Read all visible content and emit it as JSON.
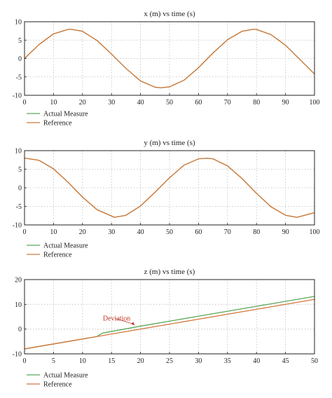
{
  "colors": {
    "actual": "#5aa85a",
    "reference": "#d4763a",
    "grid": "#bdbdbd",
    "axis": "#222222",
    "annotation": "#c0392b"
  },
  "chart_data": [
    {
      "type": "line",
      "title": "x (m) vs time (s)",
      "xlim": [
        0,
        100
      ],
      "ylim": [
        -10,
        10
      ],
      "xticks": [
        0,
        10,
        20,
        30,
        40,
        50,
        60,
        70,
        80,
        90,
        100
      ],
      "yticks": [
        10,
        5,
        0,
        -5,
        -10
      ],
      "grid": true,
      "legend": [
        "Actual Measure",
        "Reference"
      ],
      "legend_position": "below",
      "series": [
        {
          "name": "Actual Measure",
          "x": [
            0,
            5,
            10,
            15,
            16,
            20,
            25,
            30,
            35,
            40,
            45,
            47,
            50,
            55,
            60,
            65,
            70,
            75,
            79,
            80,
            85,
            90,
            95,
            100
          ],
          "y": [
            0,
            3.8,
            6.7,
            7.9,
            7.95,
            7.4,
            4.9,
            1.2,
            -2.7,
            -6.1,
            -7.8,
            -7.95,
            -7.7,
            -5.9,
            -2.5,
            1.5,
            5.1,
            7.4,
            7.95,
            7.9,
            6.5,
            3.6,
            -0.3,
            -4.2
          ]
        },
        {
          "name": "Reference",
          "x": [
            0,
            5,
            10,
            15,
            16,
            20,
            25,
            30,
            35,
            40,
            45,
            47,
            50,
            55,
            60,
            65,
            70,
            75,
            79,
            80,
            85,
            90,
            95,
            100
          ],
          "y": [
            0,
            3.8,
            6.7,
            7.9,
            7.95,
            7.4,
            4.9,
            1.2,
            -2.7,
            -6.1,
            -7.8,
            -7.95,
            -7.7,
            -5.9,
            -2.5,
            1.5,
            5.1,
            7.4,
            7.95,
            7.9,
            6.5,
            3.6,
            -0.3,
            -4.2
          ]
        }
      ]
    },
    {
      "type": "line",
      "title": "y (m) vs time (s)",
      "xlim": [
        0,
        100
      ],
      "ylim": [
        -10,
        10
      ],
      "xticks": [
        0,
        10,
        20,
        30,
        40,
        50,
        60,
        70,
        80,
        90,
        100
      ],
      "yticks": [
        10,
        5,
        0,
        -5,
        -10
      ],
      "grid": true,
      "legend": [
        "Actual Measure",
        "Reference"
      ],
      "legend_position": "below",
      "series": [
        {
          "name": "Actual Measure",
          "x": [
            0,
            5,
            10,
            15,
            20,
            25,
            31,
            35,
            40,
            45,
            50,
            55,
            60,
            63,
            65,
            70,
            75,
            80,
            85,
            90,
            94,
            100
          ],
          "y": [
            8,
            7.4,
            5.1,
            1.5,
            -2.5,
            -5.9,
            -7.95,
            -7.4,
            -4.9,
            -1.2,
            2.7,
            6.1,
            7.8,
            7.95,
            7.8,
            5.9,
            2.5,
            -1.5,
            -5.1,
            -7.4,
            -7.95,
            -6.7
          ]
        },
        {
          "name": "Reference",
          "x": [
            0,
            5,
            10,
            15,
            20,
            25,
            31,
            35,
            40,
            45,
            50,
            55,
            60,
            63,
            65,
            70,
            75,
            80,
            85,
            90,
            94,
            100
          ],
          "y": [
            8,
            7.4,
            5.1,
            1.5,
            -2.5,
            -5.9,
            -7.95,
            -7.4,
            -4.9,
            -1.2,
            2.7,
            6.1,
            7.8,
            7.95,
            7.8,
            5.9,
            2.5,
            -1.5,
            -5.1,
            -7.4,
            -7.95,
            -6.7
          ]
        }
      ]
    },
    {
      "type": "line",
      "title": "z (m) vs time (s)",
      "xlim": [
        0,
        50
      ],
      "ylim": [
        -10,
        20
      ],
      "xticks": [
        0,
        5,
        10,
        15,
        20,
        25,
        30,
        35,
        40,
        45,
        50
      ],
      "yticks": [
        20,
        10,
        0,
        -10
      ],
      "grid": true,
      "legend": [
        "Actual Measure",
        "Reference"
      ],
      "legend_position": "below",
      "series": [
        {
          "name": "Actual Measure",
          "x": [
            0,
            12.5,
            13,
            13.5,
            20,
            30,
            40,
            50
          ],
          "y": [
            -8,
            -3,
            -2.2,
            -1.6,
            1.2,
            5.2,
            9.2,
            13.2
          ]
        },
        {
          "name": "Reference",
          "x": [
            0,
            10,
            20,
            30,
            40,
            50
          ],
          "y": [
            -8,
            -4,
            0,
            4,
            8,
            12
          ]
        }
      ],
      "annotations": [
        {
          "text": "Deviation",
          "x": 19,
          "y": 1.2
        }
      ]
    }
  ]
}
